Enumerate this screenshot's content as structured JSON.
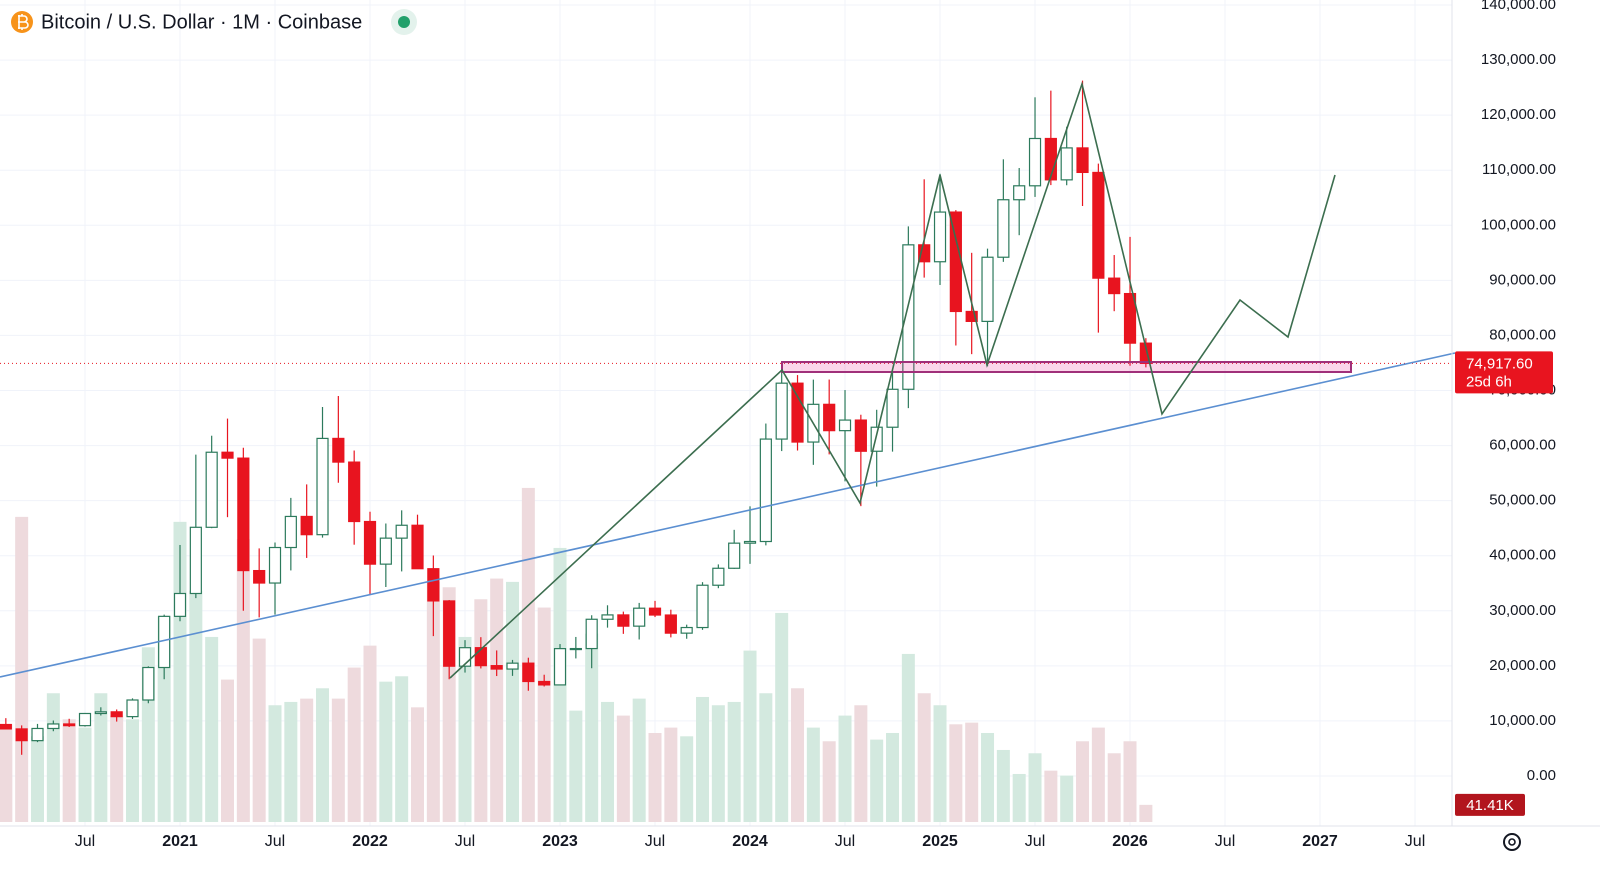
{
  "chart_data": {
    "type": "candlestick",
    "title": "Bitcoin / U.S. Dollar · 1M · Coinbase",
    "x": [
      "2020-02",
      "2020-03",
      "2020-04",
      "2020-05",
      "2020-06",
      "2020-07",
      "2020-08",
      "2020-09",
      "2020-10",
      "2020-11",
      "2020-12",
      "2021-01",
      "2021-02",
      "2021-03",
      "2021-04",
      "2021-05",
      "2021-06",
      "2021-07",
      "2021-08",
      "2021-09",
      "2021-10",
      "2021-11",
      "2021-12",
      "2022-01",
      "2022-02",
      "2022-03",
      "2022-04",
      "2022-05",
      "2022-06",
      "2022-07",
      "2022-08",
      "2022-09",
      "2022-10",
      "2022-11",
      "2022-12",
      "2023-01",
      "2023-02",
      "2023-03",
      "2023-04",
      "2023-05",
      "2023-06",
      "2023-07",
      "2023-08",
      "2023-09",
      "2023-10",
      "2023-11",
      "2023-12",
      "2024-01",
      "2024-02",
      "2024-03",
      "2024-04",
      "2024-05",
      "2024-06",
      "2024-07",
      "2024-08",
      "2024-09",
      "2024-10",
      "2024-11",
      "2024-12",
      "2025-01",
      "2025-02",
      "2025-03",
      "2025-04",
      "2025-05",
      "2025-06",
      "2025-07",
      "2025-08",
      "2025-09",
      "2025-10",
      "2025-11",
      "2025-12",
      "2026-01",
      "2026-02"
    ],
    "open": [
      9350,
      8550,
      6420,
      8630,
      9450,
      9140,
      11350,
      11650,
      10780,
      13800,
      19700,
      28990,
      33140,
      45160,
      58790,
      57720,
      37300,
      35040,
      41490,
      47130,
      43820,
      61300,
      57000,
      46210,
      38470,
      43190,
      45530,
      37640,
      31790,
      19940,
      23300,
      20040,
      19420,
      20490,
      17160,
      16540,
      23130,
      23140,
      28460,
      29250,
      27210,
      30470,
      29230,
      25940,
      26960,
      34640,
      37720,
      42280,
      42580,
      61180,
      71330,
      60640,
      67490,
      62710,
      64630,
      58970,
      63330,
      70220,
      96450,
      93380,
      102400,
      84350,
      82550,
      94200,
      104640,
      107170,
      115760,
      108250,
      114050,
      109600,
      90400,
      87600,
      78600
    ],
    "high": [
      10500,
      9190,
      9460,
      10080,
      10390,
      11450,
      12480,
      12080,
      14100,
      19920,
      29300,
      41950,
      58350,
      61790,
      64900,
      59600,
      41330,
      42400,
      50500,
      52950,
      67000,
      69000,
      59100,
      47990,
      45850,
      48240,
      47450,
      40040,
      31950,
      24670,
      25210,
      22800,
      21080,
      21480,
      18390,
      23960,
      25250,
      29190,
      31000,
      29850,
      31430,
      31800,
      30200,
      27480,
      35200,
      38420,
      44700,
      48970,
      64000,
      73830,
      72800,
      71980,
      71990,
      70080,
      65600,
      66500,
      73600,
      99800,
      108350,
      109350,
      102750,
      95000,
      95760,
      111980,
      110400,
      123240,
      124450,
      117900,
      126270,
      111200,
      94600,
      97900,
      79500
    ],
    "low": [
      8450,
      3850,
      6150,
      8130,
      8900,
      8970,
      10990,
      9880,
      10370,
      13210,
      17570,
      28100,
      32300,
      45000,
      47000,
      30000,
      28800,
      29300,
      37330,
      39600,
      43290,
      53250,
      42000,
      32950,
      34320,
      37150,
      37700,
      25400,
      17570,
      18780,
      19530,
      18150,
      18180,
      15480,
      16250,
      16500,
      21350,
      19570,
      26940,
      25810,
      24790,
      28860,
      25170,
      24920,
      26540,
      34100,
      37610,
      38520,
      41880,
      59000,
      59100,
      56500,
      58400,
      53500,
      49000,
      52550,
      58900,
      66800,
      90500,
      89160,
      78170,
      76600,
      74400,
      93360,
      98200,
      105150,
      107300,
      107270,
      103500,
      80500,
      84400,
      74500,
      74200
    ],
    "close": [
      8550,
      6420,
      8630,
      9450,
      9140,
      11350,
      11650,
      10780,
      13800,
      19700,
      28990,
      33140,
      45160,
      58790,
      57720,
      37300,
      35040,
      41490,
      47130,
      43820,
      61300,
      57000,
      46210,
      38470,
      43190,
      45530,
      37640,
      31790,
      19940,
      23300,
      20040,
      19420,
      20490,
      17160,
      16540,
      23130,
      23140,
      28460,
      29250,
      27210,
      30470,
      29230,
      25940,
      26960,
      34640,
      37720,
      42280,
      42580,
      61180,
      71330,
      60640,
      67490,
      62710,
      64630,
      58970,
      63330,
      70220,
      96450,
      93380,
      102400,
      84350,
      82550,
      94200,
      104640,
      107170,
      115760,
      108250,
      114050,
      109600,
      90400,
      87600,
      78600,
      74917.6
    ],
    "volume": [
      236,
      737,
      207,
      311,
      248,
      228,
      311,
      257,
      248,
      422,
      497,
      725,
      559,
      447,
      344,
      683,
      443,
      282,
      290,
      298,
      323,
      298,
      373,
      426,
      339,
      352,
      277,
      580,
      567,
      447,
      538,
      588,
      580,
      807,
      518,
      662,
      269,
      455,
      290,
      257,
      298,
      215,
      228,
      207,
      302,
      282,
      290,
      414,
      311,
      505,
      323,
      228,
      195,
      257,
      282,
      199,
      215,
      406,
      311,
      282,
      236,
      240,
      215,
      174,
      116,
      166,
      124,
      112,
      195,
      228,
      166,
      195,
      41.41
    ],
    "last_price_label": "74,917.60",
    "countdown": "25d 6h",
    "last_volume_label": "41.41K",
    "up_color": "#2c7a5c",
    "down_color": "#e8141f",
    "up_volume_color": "#d3e9df",
    "down_volume_color": "#eedadd",
    "xlim": [
      "2020-01",
      "2027-09"
    ],
    "xticks": [
      {
        "value": "2020-07",
        "label": "Jul"
      },
      {
        "value": "2021-01",
        "label": "2021"
      },
      {
        "value": "2021-07",
        "label": "Jul"
      },
      {
        "value": "2022-01",
        "label": "2022"
      },
      {
        "value": "2022-07",
        "label": "Jul"
      },
      {
        "value": "2023-01",
        "label": "2023"
      },
      {
        "value": "2023-07",
        "label": "Jul"
      },
      {
        "value": "2024-01",
        "label": "2024"
      },
      {
        "value": "2024-07",
        "label": "Jul"
      },
      {
        "value": "2025-01",
        "label": "2025"
      },
      {
        "value": "2025-07",
        "label": "Jul"
      },
      {
        "value": "2026-01",
        "label": "2026"
      },
      {
        "value": "2026-07",
        "label": "Jul"
      },
      {
        "value": "2027-01",
        "label": "2027"
      },
      {
        "value": "2027-07",
        "label": "Jul"
      }
    ],
    "ylim": [
      0,
      140000
    ],
    "yticks": [
      {
        "value": 0,
        "label": "0.00"
      },
      {
        "value": 10000,
        "label": "10,000.00"
      },
      {
        "value": 20000,
        "label": "20,000.00"
      },
      {
        "value": 30000,
        "label": "30,000.00"
      },
      {
        "value": 40000,
        "label": "40,000.00"
      },
      {
        "value": 50000,
        "label": "50,000.00"
      },
      {
        "value": 60000,
        "label": "60,000.00"
      },
      {
        "value": 70000,
        "label": "70,000.00"
      },
      {
        "value": 80000,
        "label": "80,000.00"
      },
      {
        "value": 90000,
        "label": "90,000.00"
      },
      {
        "value": 100000,
        "label": "100,000.00"
      },
      {
        "value": 110000,
        "label": "110,000.00"
      },
      {
        "value": 120000,
        "label": "120,000.00"
      },
      {
        "value": 130000,
        "label": "130,000.00"
      },
      {
        "value": 140000,
        "label": "140,000.00"
      }
    ],
    "volume_ylim": [
      0,
      1000
    ],
    "grid": true
  }
}
